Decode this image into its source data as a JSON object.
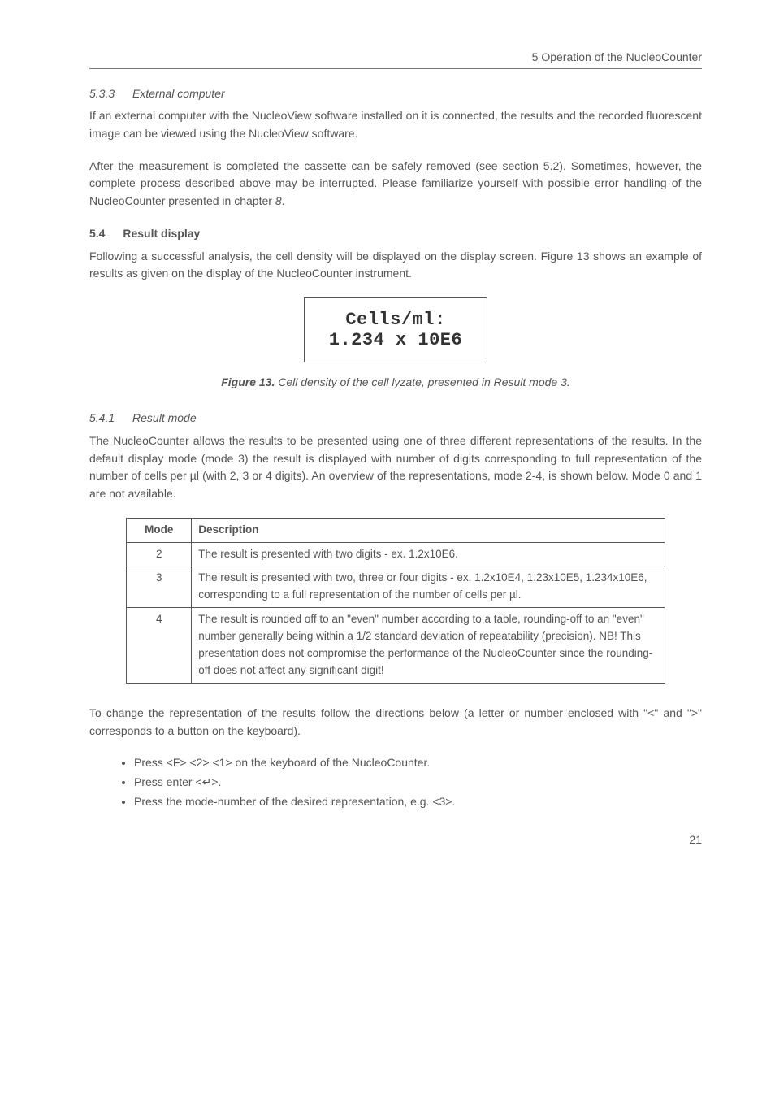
{
  "header": {
    "running": "5 Operation of the NucleoCounter"
  },
  "sec533": {
    "num": "5.3.3",
    "title": "External computer",
    "p1": "If an external computer with the NucleoView software installed on it is connected, the results and the recorded fluorescent image can be viewed using the NucleoView software.",
    "p2_a": "After the measurement is completed the cassette can be safely removed (see section 5.2). Sometimes, however, the complete process described above may be interrupted. Please familiarize yourself with possible error handling of the NucleoCounter presented in chapter ",
    "p2_em": "8",
    "p2_b": "."
  },
  "sec54": {
    "num": "5.4",
    "title": "Result display",
    "p1": "Following a successful analysis, the cell density will be displayed on the display screen. Figure 13 shows an example of results as given on the display of the NucleoCounter instrument."
  },
  "display": {
    "line1": "Cells/ml:",
    "line2": "1.234 x 10E6"
  },
  "figure": {
    "label": "Figure 13.",
    "text": " Cell density of the cell lyzate, presented in Result mode 3."
  },
  "sec541": {
    "num": "5.4.1",
    "title": "Result mode",
    "p1": "The NucleoCounter allows the results to be presented using one of three different representations of the results. In the default display mode (mode 3) the result is displayed with number of digits corresponding to full representation of the number of cells per µl (with 2, 3 or 4 digits). An overview of the representations, mode 2-4, is shown below. Mode 0 and 1 are not available."
  },
  "table": {
    "h1": "Mode",
    "h2": "Description",
    "rows": [
      {
        "mode": "2",
        "desc": "The result is presented with two digits - ex. 1.2x10E6."
      },
      {
        "mode": "3",
        "desc": "The result is presented with two, three or four digits - ex. 1.2x10E4, 1.23x10E5, 1.234x10E6, corresponding to a full representation of the number of cells per µl."
      },
      {
        "mode": "4",
        "desc": "The result is rounded off to an \"even\" number according to a table, rounding-off to an \"even\" number generally being within a 1/2 standard deviation of repeatability (precision). NB! This presentation does not compromise the performance of the NucleoCounter since the rounding-off does not affect any significant digit!"
      }
    ]
  },
  "post_table": {
    "p1": "To change the representation of the results follow the directions below (a letter or number enclosed with \"<\" and \">\" corresponds to a button on the keyboard).",
    "bullets": [
      "Press <F> <2> <1> on the keyboard of the NucleoCounter.",
      "Press enter <↵>.",
      "Press the mode-number of the desired representation, e.g. <3>."
    ]
  },
  "page": "21"
}
